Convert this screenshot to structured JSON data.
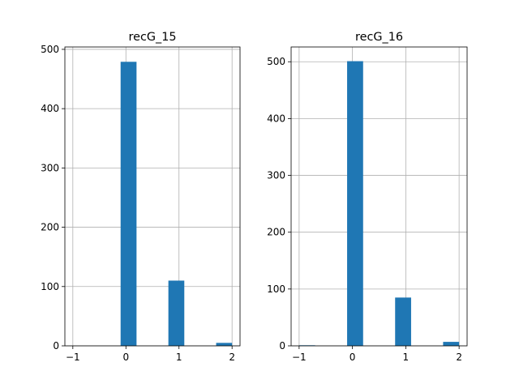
{
  "chart_data": [
    {
      "type": "bar",
      "title": "recG_15",
      "xlabel": "",
      "ylabel": "",
      "xlim": [
        -1.15,
        2.15
      ],
      "ylim": [
        0,
        504
      ],
      "xticks": [
        -1,
        0,
        1,
        2
      ],
      "yticks": [
        0,
        100,
        200,
        300,
        400,
        500
      ],
      "grid": true,
      "bin_width": 0.3,
      "bars": [
        {
          "x_start": -1.0,
          "value": 0
        },
        {
          "x_start": -0.1,
          "value": 479
        },
        {
          "x_start": 0.8,
          "value": 110
        },
        {
          "x_start": 1.7,
          "value": 5
        }
      ]
    },
    {
      "type": "bar",
      "title": "recG_16",
      "xlabel": "",
      "ylabel": "",
      "xlim": [
        -1.15,
        2.15
      ],
      "ylim": [
        0,
        526
      ],
      "xticks": [
        -1,
        0,
        1,
        2
      ],
      "yticks": [
        0,
        100,
        200,
        300,
        400,
        500
      ],
      "grid": true,
      "bin_width": 0.3,
      "bars": [
        {
          "x_start": -1.0,
          "value": 1
        },
        {
          "x_start": -0.1,
          "value": 501
        },
        {
          "x_start": 0.8,
          "value": 85
        },
        {
          "x_start": 1.7,
          "value": 7
        }
      ]
    }
  ],
  "colors": {
    "bar": "#1f77b4",
    "grid": "#b0b0b0",
    "axis": "#000000"
  }
}
